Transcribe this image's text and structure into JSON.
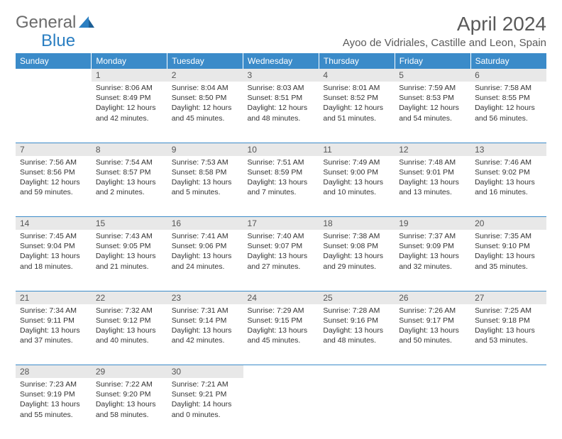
{
  "logo": {
    "text1": "General",
    "text2": "Blue"
  },
  "title": "April 2024",
  "location": "Ayoo de Vidriales, Castille and Leon, Spain",
  "colors": {
    "header_bg": "#3b8bc9",
    "header_text": "#ffffff",
    "daynum_bg": "#e8e8e8",
    "border": "#3b8bc9",
    "text": "#333333",
    "logo_gray": "#6b6b6b",
    "logo_blue": "#2b7fc2"
  },
  "typography": {
    "title_fontsize": 28,
    "location_fontsize": 15,
    "dayname_fontsize": 12,
    "daynum_fontsize": 12,
    "body_fontsize": 10.5,
    "logo_fontsize": 24
  },
  "day_names": [
    "Sunday",
    "Monday",
    "Tuesday",
    "Wednesday",
    "Thursday",
    "Friday",
    "Saturday"
  ],
  "weeks": [
    [
      null,
      {
        "n": "1",
        "sr": "Sunrise: 8:06 AM",
        "ss": "Sunset: 8:49 PM",
        "d1": "Daylight: 12 hours",
        "d2": "and 42 minutes."
      },
      {
        "n": "2",
        "sr": "Sunrise: 8:04 AM",
        "ss": "Sunset: 8:50 PM",
        "d1": "Daylight: 12 hours",
        "d2": "and 45 minutes."
      },
      {
        "n": "3",
        "sr": "Sunrise: 8:03 AM",
        "ss": "Sunset: 8:51 PM",
        "d1": "Daylight: 12 hours",
        "d2": "and 48 minutes."
      },
      {
        "n": "4",
        "sr": "Sunrise: 8:01 AM",
        "ss": "Sunset: 8:52 PM",
        "d1": "Daylight: 12 hours",
        "d2": "and 51 minutes."
      },
      {
        "n": "5",
        "sr": "Sunrise: 7:59 AM",
        "ss": "Sunset: 8:53 PM",
        "d1": "Daylight: 12 hours",
        "d2": "and 54 minutes."
      },
      {
        "n": "6",
        "sr": "Sunrise: 7:58 AM",
        "ss": "Sunset: 8:55 PM",
        "d1": "Daylight: 12 hours",
        "d2": "and 56 minutes."
      }
    ],
    [
      {
        "n": "7",
        "sr": "Sunrise: 7:56 AM",
        "ss": "Sunset: 8:56 PM",
        "d1": "Daylight: 12 hours",
        "d2": "and 59 minutes."
      },
      {
        "n": "8",
        "sr": "Sunrise: 7:54 AM",
        "ss": "Sunset: 8:57 PM",
        "d1": "Daylight: 13 hours",
        "d2": "and 2 minutes."
      },
      {
        "n": "9",
        "sr": "Sunrise: 7:53 AM",
        "ss": "Sunset: 8:58 PM",
        "d1": "Daylight: 13 hours",
        "d2": "and 5 minutes."
      },
      {
        "n": "10",
        "sr": "Sunrise: 7:51 AM",
        "ss": "Sunset: 8:59 PM",
        "d1": "Daylight: 13 hours",
        "d2": "and 7 minutes."
      },
      {
        "n": "11",
        "sr": "Sunrise: 7:49 AM",
        "ss": "Sunset: 9:00 PM",
        "d1": "Daylight: 13 hours",
        "d2": "and 10 minutes."
      },
      {
        "n": "12",
        "sr": "Sunrise: 7:48 AM",
        "ss": "Sunset: 9:01 PM",
        "d1": "Daylight: 13 hours",
        "d2": "and 13 minutes."
      },
      {
        "n": "13",
        "sr": "Sunrise: 7:46 AM",
        "ss": "Sunset: 9:02 PM",
        "d1": "Daylight: 13 hours",
        "d2": "and 16 minutes."
      }
    ],
    [
      {
        "n": "14",
        "sr": "Sunrise: 7:45 AM",
        "ss": "Sunset: 9:04 PM",
        "d1": "Daylight: 13 hours",
        "d2": "and 18 minutes."
      },
      {
        "n": "15",
        "sr": "Sunrise: 7:43 AM",
        "ss": "Sunset: 9:05 PM",
        "d1": "Daylight: 13 hours",
        "d2": "and 21 minutes."
      },
      {
        "n": "16",
        "sr": "Sunrise: 7:41 AM",
        "ss": "Sunset: 9:06 PM",
        "d1": "Daylight: 13 hours",
        "d2": "and 24 minutes."
      },
      {
        "n": "17",
        "sr": "Sunrise: 7:40 AM",
        "ss": "Sunset: 9:07 PM",
        "d1": "Daylight: 13 hours",
        "d2": "and 27 minutes."
      },
      {
        "n": "18",
        "sr": "Sunrise: 7:38 AM",
        "ss": "Sunset: 9:08 PM",
        "d1": "Daylight: 13 hours",
        "d2": "and 29 minutes."
      },
      {
        "n": "19",
        "sr": "Sunrise: 7:37 AM",
        "ss": "Sunset: 9:09 PM",
        "d1": "Daylight: 13 hours",
        "d2": "and 32 minutes."
      },
      {
        "n": "20",
        "sr": "Sunrise: 7:35 AM",
        "ss": "Sunset: 9:10 PM",
        "d1": "Daylight: 13 hours",
        "d2": "and 35 minutes."
      }
    ],
    [
      {
        "n": "21",
        "sr": "Sunrise: 7:34 AM",
        "ss": "Sunset: 9:11 PM",
        "d1": "Daylight: 13 hours",
        "d2": "and 37 minutes."
      },
      {
        "n": "22",
        "sr": "Sunrise: 7:32 AM",
        "ss": "Sunset: 9:12 PM",
        "d1": "Daylight: 13 hours",
        "d2": "and 40 minutes."
      },
      {
        "n": "23",
        "sr": "Sunrise: 7:31 AM",
        "ss": "Sunset: 9:14 PM",
        "d1": "Daylight: 13 hours",
        "d2": "and 42 minutes."
      },
      {
        "n": "24",
        "sr": "Sunrise: 7:29 AM",
        "ss": "Sunset: 9:15 PM",
        "d1": "Daylight: 13 hours",
        "d2": "and 45 minutes."
      },
      {
        "n": "25",
        "sr": "Sunrise: 7:28 AM",
        "ss": "Sunset: 9:16 PM",
        "d1": "Daylight: 13 hours",
        "d2": "and 48 minutes."
      },
      {
        "n": "26",
        "sr": "Sunrise: 7:26 AM",
        "ss": "Sunset: 9:17 PM",
        "d1": "Daylight: 13 hours",
        "d2": "and 50 minutes."
      },
      {
        "n": "27",
        "sr": "Sunrise: 7:25 AM",
        "ss": "Sunset: 9:18 PM",
        "d1": "Daylight: 13 hours",
        "d2": "and 53 minutes."
      }
    ],
    [
      {
        "n": "28",
        "sr": "Sunrise: 7:23 AM",
        "ss": "Sunset: 9:19 PM",
        "d1": "Daylight: 13 hours",
        "d2": "and 55 minutes."
      },
      {
        "n": "29",
        "sr": "Sunrise: 7:22 AM",
        "ss": "Sunset: 9:20 PM",
        "d1": "Daylight: 13 hours",
        "d2": "and 58 minutes."
      },
      {
        "n": "30",
        "sr": "Sunrise: 7:21 AM",
        "ss": "Sunset: 9:21 PM",
        "d1": "Daylight: 14 hours",
        "d2": "and 0 minutes."
      },
      null,
      null,
      null,
      null
    ]
  ]
}
